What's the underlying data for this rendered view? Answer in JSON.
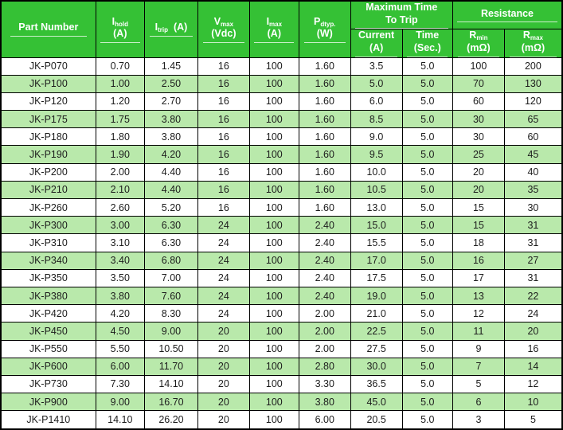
{
  "table": {
    "header": {
      "part_number": "Part Number",
      "i_hold": {
        "sym": "I",
        "sub": "hold",
        "unit": "(A)"
      },
      "i_trip": {
        "sym": "I",
        "sub": "trip",
        "unit": "(A)"
      },
      "v_max": {
        "sym": "V",
        "sub": "max",
        "unit": "(Vdc)"
      },
      "i_max": {
        "sym": "I",
        "sub": "max",
        "unit": "(A)"
      },
      "p_dtyp": {
        "sym": "P",
        "sub": "dtyp.",
        "unit": "(W)"
      },
      "trip_group": {
        "line1": "Maximum Time",
        "line2": "To Trip"
      },
      "current": {
        "label": "Current",
        "unit": "(A)"
      },
      "time": {
        "label": "Time",
        "unit": "(Sec.)"
      },
      "resistance": "Resistance",
      "r_min": {
        "sym": "R",
        "sub": "min",
        "unit": "(mΩ)"
      },
      "r_max": {
        "sym": "R",
        "sub": "max",
        "unit": "(mΩ)"
      }
    },
    "rows": [
      [
        "JK-P070",
        "0.70",
        "1.45",
        "16",
        "100",
        "1.60",
        "3.5",
        "5.0",
        "100",
        "200"
      ],
      [
        "JK-P100",
        "1.00",
        "2.50",
        "16",
        "100",
        "1.60",
        "5.0",
        "5.0",
        "70",
        "130"
      ],
      [
        "JK-P120",
        "1.20",
        "2.70",
        "16",
        "100",
        "1.60",
        "6.0",
        "5.0",
        "60",
        "120"
      ],
      [
        "JK-P175",
        "1.75",
        "3.80",
        "16",
        "100",
        "1.60",
        "8.5",
        "5.0",
        "30",
        "65"
      ],
      [
        "JK-P180",
        "1.80",
        "3.80",
        "16",
        "100",
        "1.60",
        "9.0",
        "5.0",
        "30",
        "60"
      ],
      [
        "JK-P190",
        "1.90",
        "4.20",
        "16",
        "100",
        "1.60",
        "9.5",
        "5.0",
        "25",
        "45"
      ],
      [
        "JK-P200",
        "2.00",
        "4.40",
        "16",
        "100",
        "1.60",
        "10.0",
        "5.0",
        "20",
        "40"
      ],
      [
        "JK-P210",
        "2.10",
        "4.40",
        "16",
        "100",
        "1.60",
        "10.5",
        "5.0",
        "20",
        "35"
      ],
      [
        "JK-P260",
        "2.60",
        "5.20",
        "16",
        "100",
        "1.60",
        "13.0",
        "5.0",
        "15",
        "30"
      ],
      [
        "JK-P300",
        "3.00",
        "6.30",
        "24",
        "100",
        "2.40",
        "15.0",
        "5.0",
        "15",
        "31"
      ],
      [
        "JK-P310",
        "3.10",
        "6.30",
        "24",
        "100",
        "2.40",
        "15.5",
        "5.0",
        "18",
        "31"
      ],
      [
        "JK-P340",
        "3.40",
        "6.80",
        "24",
        "100",
        "2.40",
        "17.0",
        "5.0",
        "16",
        "27"
      ],
      [
        "JK-P350",
        "3.50",
        "7.00",
        "24",
        "100",
        "2.40",
        "17.5",
        "5.0",
        "17",
        "31"
      ],
      [
        "JK-P380",
        "3.80",
        "7.60",
        "24",
        "100",
        "2.40",
        "19.0",
        "5.0",
        "13",
        "22"
      ],
      [
        "JK-P420",
        "4.20",
        "8.30",
        "24",
        "100",
        "2.00",
        "21.0",
        "5.0",
        "12",
        "24"
      ],
      [
        "JK-P450",
        "4.50",
        "9.00",
        "20",
        "100",
        "2.00",
        "22.5",
        "5.0",
        "11",
        "20"
      ],
      [
        "JK-P550",
        "5.50",
        "10.50",
        "20",
        "100",
        "2.00",
        "27.5",
        "5.0",
        "9",
        "16"
      ],
      [
        "JK-P600",
        "6.00",
        "11.70",
        "20",
        "100",
        "2.80",
        "30.0",
        "5.0",
        "7",
        "14"
      ],
      [
        "JK-P730",
        "7.30",
        "14.10",
        "20",
        "100",
        "3.30",
        "36.5",
        "5.0",
        "5",
        "12"
      ],
      [
        "JK-P900",
        "9.00",
        "16.70",
        "20",
        "100",
        "3.80",
        "45.0",
        "5.0",
        "6",
        "10"
      ],
      [
        "JK-P1410",
        "14.10",
        "26.20",
        "20",
        "100",
        "6.00",
        "20.5",
        "5.0",
        "3",
        "5"
      ]
    ]
  },
  "colors": {
    "header_green": "#35c135",
    "row_stripe_green": "#b9e9ab",
    "border_black": "#000000",
    "header_text": "#ffffff",
    "cell_text": "#1c1c1c"
  }
}
